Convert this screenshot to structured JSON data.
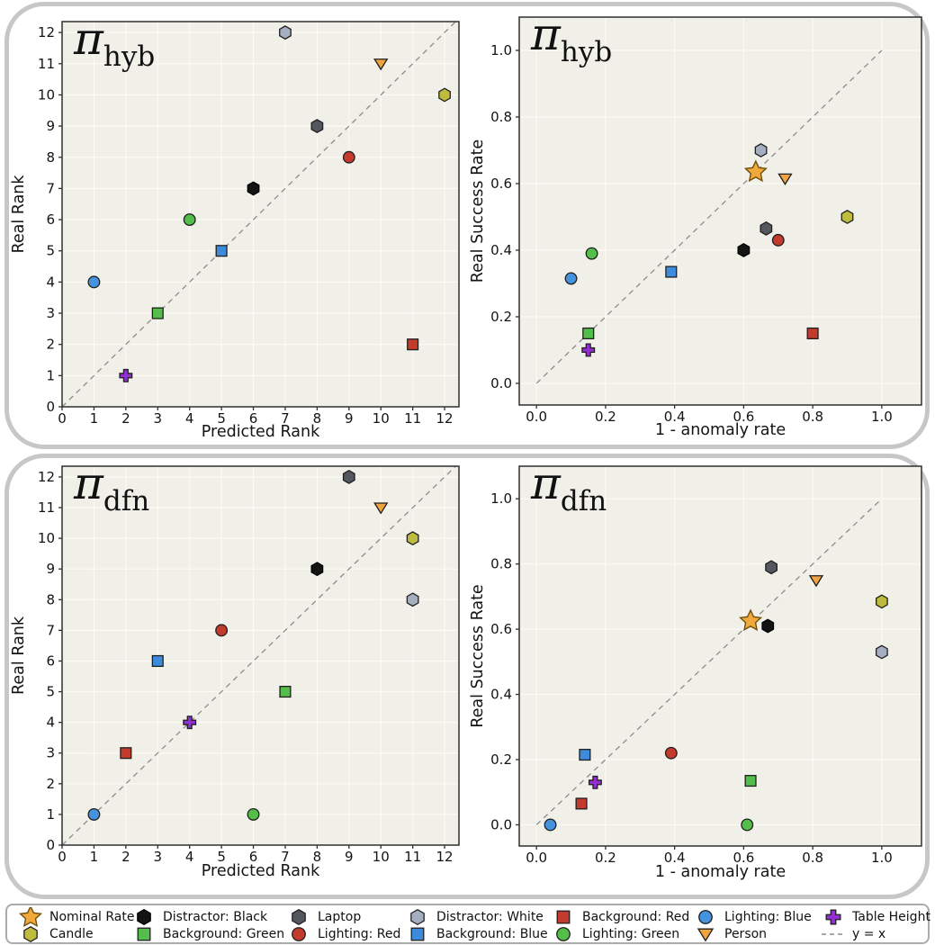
{
  "colors": {
    "plot_bg": "#f0efe8",
    "grid": "#fbfbf4",
    "spine": "#2f2f2f",
    "diagonal": "#8c8c8c",
    "card_border": "#c7c7c7",
    "legend_border": "#ababab",
    "text": "#141414"
  },
  "series": [
    {
      "name": "Nominal Rate",
      "marker": "star",
      "fill": "#F2A93B",
      "edge": "#6E500F"
    },
    {
      "name": "Candle",
      "marker": "hexagon",
      "fill": "#BFBB3E",
      "edge": "#1f1f1f"
    },
    {
      "name": "Distractor: Black",
      "marker": "hexagon",
      "fill": "#141414",
      "edge": "#000000"
    },
    {
      "name": "Background: Green",
      "marker": "square",
      "fill": "#53BE49",
      "edge": "#1f1f1f"
    },
    {
      "name": "Laptop",
      "marker": "hexagon",
      "fill": "#54585E",
      "edge": "#1f1f1f"
    },
    {
      "name": "Lighting: Red",
      "marker": "circle",
      "fill": "#C23B2C",
      "edge": "#1f1f1f"
    },
    {
      "name": "Distractor: White",
      "marker": "hexagon",
      "fill": "#A6AFC2",
      "edge": "#1f1f1f"
    },
    {
      "name": "Background: Blue",
      "marker": "square",
      "fill": "#3E8BDD",
      "edge": "#1f1f1f"
    },
    {
      "name": "Background: Red",
      "marker": "square",
      "fill": "#C23B2C",
      "edge": "#1f1f1f"
    },
    {
      "name": "Lighting: Green",
      "marker": "circle",
      "fill": "#53BE49",
      "edge": "#1f1f1f"
    },
    {
      "name": "Lighting: Blue",
      "marker": "circle",
      "fill": "#4593DF",
      "edge": "#1f1f1f"
    },
    {
      "name": "Person",
      "marker": "triangle-down",
      "fill": "#F0A440",
      "edge": "#1f1f1f"
    },
    {
      "name": "Table Height",
      "marker": "plus",
      "fill": "#912FD0",
      "edge": "#1f1f1f"
    },
    {
      "name": "y = x",
      "marker": "dash",
      "fill": "#8C8C8C",
      "edge": "#8C8C8C"
    }
  ],
  "legend": {
    "columns": [
      [
        "Nominal Rate",
        "Candle"
      ],
      [
        "Distractor: Black",
        "Background: Green"
      ],
      [
        "Laptop",
        "Lighting: Red"
      ],
      [
        "Distractor: White",
        "Background: Blue"
      ],
      [
        "Background: Red",
        "Lighting: Green"
      ],
      [
        "Lighting: Blue",
        "Person"
      ],
      [
        "Table Height",
        "y = x"
      ]
    ]
  },
  "chart_data": [
    {
      "type": "scatter",
      "id": "hyb-rank",
      "title_pi": "π",
      "title_sub": "hyb",
      "xlabel": "Predicted Rank",
      "ylabel": "Real Rank",
      "xlim": [
        0,
        12.45
      ],
      "ylim": [
        0,
        12.35
      ],
      "xticks": [
        0,
        1,
        2,
        3,
        4,
        5,
        6,
        7,
        8,
        9,
        10,
        11,
        12
      ],
      "yticks": [
        0,
        1,
        2,
        3,
        4,
        5,
        6,
        7,
        8,
        9,
        10,
        11,
        12
      ],
      "tick_decimals": 0,
      "grid": true,
      "diagonal": {
        "from": [
          0,
          0
        ],
        "to": [
          12.35,
          12.35
        ]
      },
      "points": [
        {
          "series": "Lighting: Blue",
          "x": 1,
          "y": 4
        },
        {
          "series": "Table Height",
          "x": 2,
          "y": 1
        },
        {
          "series": "Background: Green",
          "x": 3,
          "y": 3
        },
        {
          "series": "Lighting: Green",
          "x": 4,
          "y": 6
        },
        {
          "series": "Background: Blue",
          "x": 5,
          "y": 5
        },
        {
          "series": "Distractor: Black",
          "x": 6,
          "y": 7
        },
        {
          "series": "Distractor: White",
          "x": 7,
          "y": 12
        },
        {
          "series": "Laptop",
          "x": 8,
          "y": 9
        },
        {
          "series": "Lighting: Red",
          "x": 9,
          "y": 8
        },
        {
          "series": "Person",
          "x": 10,
          "y": 11
        },
        {
          "series": "Background: Red",
          "x": 11,
          "y": 2
        },
        {
          "series": "Candle",
          "x": 12,
          "y": 10
        }
      ]
    },
    {
      "type": "scatter",
      "id": "hyb-rate",
      "title_pi": "π",
      "title_sub": "hyb",
      "xlabel": "1 - anomaly rate",
      "ylabel": "Real Success Rate",
      "xlim": [
        -0.05,
        1.115
      ],
      "ylim": [
        -0.065,
        1.1
      ],
      "xticks": [
        0,
        0.2,
        0.4,
        0.6,
        0.8,
        1.0
      ],
      "yticks": [
        0,
        0.2,
        0.4,
        0.6,
        0.8,
        1.0
      ],
      "tick_decimals": 1,
      "grid": true,
      "diagonal": {
        "from": [
          0,
          0
        ],
        "to": [
          1,
          1
        ]
      },
      "points": [
        {
          "series": "Lighting: Blue",
          "x": 0.1,
          "y": 0.315
        },
        {
          "series": "Lighting: Green",
          "x": 0.16,
          "y": 0.39
        },
        {
          "series": "Background: Green",
          "x": 0.15,
          "y": 0.15
        },
        {
          "series": "Table Height",
          "x": 0.15,
          "y": 0.1
        },
        {
          "series": "Background: Blue",
          "x": 0.39,
          "y": 0.335
        },
        {
          "series": "Distractor: Black",
          "x": 0.6,
          "y": 0.4
        },
        {
          "series": "Distractor: White",
          "x": 0.65,
          "y": 0.7
        },
        {
          "series": "Laptop",
          "x": 0.665,
          "y": 0.465
        },
        {
          "series": "Lighting: Red",
          "x": 0.7,
          "y": 0.43
        },
        {
          "series": "Person",
          "x": 0.72,
          "y": 0.615
        },
        {
          "series": "Background: Red",
          "x": 0.8,
          "y": 0.15
        },
        {
          "series": "Candle",
          "x": 0.9,
          "y": 0.5
        },
        {
          "series": "Nominal Rate",
          "x": 0.635,
          "y": 0.635
        }
      ]
    },
    {
      "type": "scatter",
      "id": "dfn-rank",
      "title_pi": "π",
      "title_sub": "dfn",
      "xlabel": "Predicted Rank",
      "ylabel": "Real Rank",
      "xlim": [
        0,
        12.45
      ],
      "ylim": [
        0,
        12.35
      ],
      "xticks": [
        0,
        1,
        2,
        3,
        4,
        5,
        6,
        7,
        8,
        9,
        10,
        11,
        12
      ],
      "yticks": [
        0,
        1,
        2,
        3,
        4,
        5,
        6,
        7,
        8,
        9,
        10,
        11,
        12
      ],
      "tick_decimals": 0,
      "grid": true,
      "diagonal": {
        "from": [
          0,
          0
        ],
        "to": [
          12.35,
          12.35
        ]
      },
      "points": [
        {
          "series": "Lighting: Blue",
          "x": 1,
          "y": 1
        },
        {
          "series": "Background: Red",
          "x": 2,
          "y": 3
        },
        {
          "series": "Background: Blue",
          "x": 3,
          "y": 6
        },
        {
          "series": "Table Height",
          "x": 4,
          "y": 4
        },
        {
          "series": "Lighting: Red",
          "x": 5,
          "y": 7
        },
        {
          "series": "Lighting: Green",
          "x": 6,
          "y": 1
        },
        {
          "series": "Background: Green",
          "x": 7,
          "y": 5
        },
        {
          "series": "Distractor: Black",
          "x": 8,
          "y": 9
        },
        {
          "series": "Laptop",
          "x": 9,
          "y": 12
        },
        {
          "series": "Person",
          "x": 10,
          "y": 11
        },
        {
          "series": "Candle",
          "x": 11,
          "y": 10
        },
        {
          "series": "Distractor: White",
          "x": 11,
          "y": 8
        }
      ]
    },
    {
      "type": "scatter",
      "id": "dfn-rate",
      "title_pi": "π",
      "title_sub": "dfn",
      "xlabel": "1 - anomaly rate",
      "ylabel": "Real Success Rate",
      "xlim": [
        -0.05,
        1.115
      ],
      "ylim": [
        -0.065,
        1.1
      ],
      "xticks": [
        0,
        0.2,
        0.4,
        0.6,
        0.8,
        1.0
      ],
      "yticks": [
        0,
        0.2,
        0.4,
        0.6,
        0.8,
        1.0
      ],
      "tick_decimals": 1,
      "grid": true,
      "diagonal": {
        "from": [
          0,
          0
        ],
        "to": [
          1,
          1
        ]
      },
      "points": [
        {
          "series": "Lighting: Blue",
          "x": 0.04,
          "y": 0.0
        },
        {
          "series": "Background: Red",
          "x": 0.13,
          "y": 0.065
        },
        {
          "series": "Background: Blue",
          "x": 0.14,
          "y": 0.215
        },
        {
          "series": "Table Height",
          "x": 0.17,
          "y": 0.13
        },
        {
          "series": "Lighting: Red",
          "x": 0.39,
          "y": 0.22
        },
        {
          "series": "Lighting: Green",
          "x": 0.61,
          "y": 0.0
        },
        {
          "series": "Background: Green",
          "x": 0.62,
          "y": 0.135
        },
        {
          "series": "Distractor: Black",
          "x": 0.67,
          "y": 0.61
        },
        {
          "series": "Laptop",
          "x": 0.68,
          "y": 0.79
        },
        {
          "series": "Person",
          "x": 0.81,
          "y": 0.75
        },
        {
          "series": "Candle",
          "x": 1.0,
          "y": 0.685
        },
        {
          "series": "Distractor: White",
          "x": 1.0,
          "y": 0.53
        },
        {
          "series": "Nominal Rate",
          "x": 0.62,
          "y": 0.625
        }
      ]
    }
  ]
}
